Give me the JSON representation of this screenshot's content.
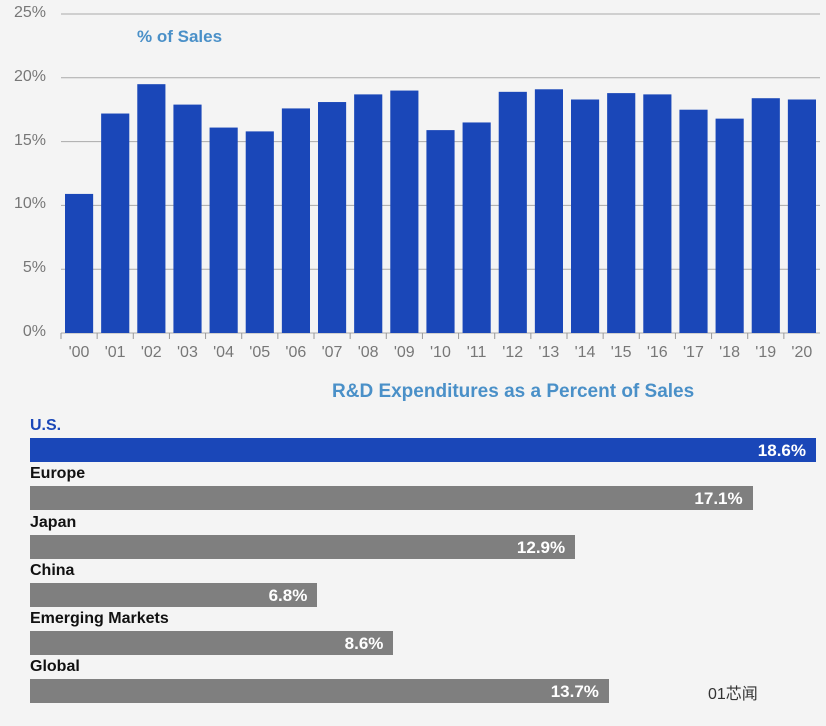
{
  "chart_data": [
    {
      "type": "bar",
      "title": "% of Sales",
      "categories": [
        "'00",
        "'01",
        "'02",
        "'03",
        "'04",
        "'05",
        "'06",
        "'07",
        "'08",
        "'09",
        "'10",
        "'11",
        "'12",
        "'13",
        "'14",
        "'15",
        "'16",
        "'17",
        "'18",
        "'19",
        "'20"
      ],
      "values": [
        10.9,
        17.2,
        19.5,
        17.9,
        16.1,
        15.8,
        17.6,
        18.1,
        18.7,
        19.0,
        15.9,
        16.5,
        18.9,
        19.1,
        18.3,
        18.8,
        18.7,
        17.5,
        16.8,
        18.4,
        18.3
      ],
      "yticks": [
        "0%",
        "5%",
        "10%",
        "15%",
        "20%",
        "25%"
      ],
      "ylim": [
        0,
        25
      ],
      "grid": true,
      "color": "#1a47b8"
    },
    {
      "type": "bar",
      "orientation": "horizontal",
      "title": "R&D Expenditures as a Percent of Sales",
      "categories": [
        "U.S.",
        "Europe",
        "Japan",
        "China",
        "Emerging Markets",
        "Global"
      ],
      "values": [
        18.6,
        17.1,
        12.9,
        6.8,
        8.6,
        13.7
      ],
      "labels": [
        "18.6%",
        "17.1%",
        "12.9%",
        "6.8%",
        "8.6%",
        "13.7%"
      ],
      "colors": [
        "#1a47b8",
        "#7f7f7f",
        "#7f7f7f",
        "#7f7f7f",
        "#7f7f7f",
        "#7f7f7f"
      ]
    }
  ],
  "watermark": "01芯闻"
}
